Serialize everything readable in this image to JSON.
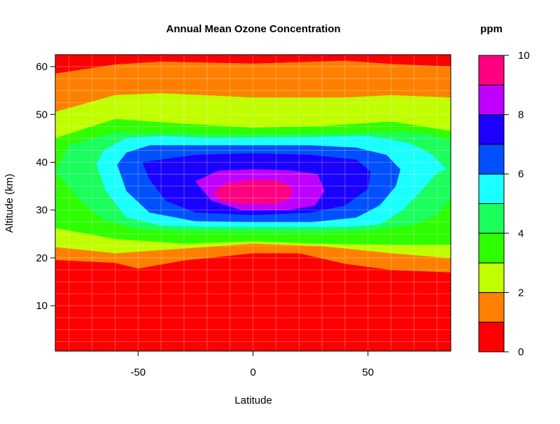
{
  "chart_data": {
    "type": "heatmap",
    "subtype": "filled-contour",
    "title": "Annual Mean Ozone Concentration",
    "xlabel": "Latitude",
    "ylabel": "Altitude (km)",
    "colorbar_title": "ppm",
    "xlim": [
      -86,
      86
    ],
    "ylim": [
      0.5,
      62.5
    ],
    "x_ticks": [
      -50,
      0,
      50
    ],
    "y_ticks": [
      10,
      20,
      30,
      40,
      50,
      60
    ],
    "colorbar_ticks": [
      0,
      2,
      4,
      6,
      8,
      10
    ],
    "grid": true,
    "levels": [
      0,
      1,
      2,
      3,
      4,
      5,
      6,
      7,
      8,
      9,
      10
    ],
    "level_colors": [
      "#FF0000",
      "#FF8000",
      "#C0FF00",
      "#2EFF00",
      "#1AFF5C",
      "#1AFFFF",
      "#0050FF",
      "#1A00FF",
      "#BF00FF",
      "#FF0080"
    ],
    "contour_bands": [
      {
        "range": [
          1,
          2
        ],
        "outline": [
          [
            -86,
            19.6
          ],
          [
            -60,
            19
          ],
          [
            -50,
            17.8
          ],
          [
            -30,
            19.5
          ],
          [
            0,
            21
          ],
          [
            20,
            21
          ],
          [
            40,
            18.8
          ],
          [
            60,
            17.5
          ],
          [
            86,
            17
          ],
          [
            86,
            60
          ],
          [
            60,
            60.5
          ],
          [
            40,
            61.2
          ],
          [
            0,
            60.6
          ],
          [
            -40,
            61
          ],
          [
            -60,
            60.4
          ],
          [
            -86,
            58.5
          ]
        ]
      },
      {
        "range": [
          2,
          3
        ],
        "outline": [
          [
            -86,
            22.3
          ],
          [
            -60,
            21
          ],
          [
            -30,
            22
          ],
          [
            0,
            23
          ],
          [
            30,
            22.5
          ],
          [
            60,
            21
          ],
          [
            86,
            20
          ],
          [
            86,
            53.5
          ],
          [
            60,
            54
          ],
          [
            40,
            53.5
          ],
          [
            0,
            53.5
          ],
          [
            -40,
            54.4
          ],
          [
            -60,
            54
          ],
          [
            -86,
            50.5
          ]
        ]
      },
      {
        "range": [
          3,
          4
        ],
        "outline": [
          [
            -86,
            26.3
          ],
          [
            -60,
            24
          ],
          [
            -30,
            23
          ],
          [
            0,
            23.5
          ],
          [
            30,
            23
          ],
          [
            60,
            22.8
          ],
          [
            86,
            22.8
          ],
          [
            86,
            46.5
          ],
          [
            60,
            48.5
          ],
          [
            30,
            47.5
          ],
          [
            0,
            47.2
          ],
          [
            -30,
            48
          ],
          [
            -60,
            49
          ],
          [
            -86,
            45
          ]
        ]
      },
      {
        "range": [
          4,
          5
        ],
        "outline": [
          [
            -86,
            38
          ],
          [
            -82,
            36
          ],
          [
            -75,
            32
          ],
          [
            -65,
            28
          ],
          [
            -50,
            26
          ],
          [
            -25,
            25.5
          ],
          [
            0,
            25.5
          ],
          [
            25,
            25.3
          ],
          [
            50,
            25.8
          ],
          [
            70,
            27
          ],
          [
            80,
            29
          ],
          [
            86,
            32.5
          ],
          [
            86,
            44.5
          ],
          [
            75,
            46
          ],
          [
            60,
            46.3
          ],
          [
            30,
            46
          ],
          [
            0,
            45.8
          ],
          [
            -30,
            46
          ],
          [
            -60,
            46.2
          ],
          [
            -80,
            43.5
          ]
        ]
      },
      {
        "range": [
          5,
          6
        ],
        "outline": [
          [
            -68,
            39.5
          ],
          [
            -64,
            34
          ],
          [
            -55,
            28.5
          ],
          [
            -40,
            26.8
          ],
          [
            -15,
            26.5
          ],
          [
            15,
            26.5
          ],
          [
            40,
            26.5
          ],
          [
            55,
            27
          ],
          [
            65,
            30
          ],
          [
            72,
            33.5
          ],
          [
            80,
            37.8
          ],
          [
            84,
            38.5
          ],
          [
            78,
            41.5
          ],
          [
            68,
            44
          ],
          [
            50,
            45.5
          ],
          [
            20,
            45.2
          ],
          [
            -20,
            45
          ],
          [
            -40,
            45.5
          ],
          [
            -55,
            45
          ],
          [
            -65,
            42.5
          ]
        ]
      },
      {
        "range": [
          6,
          7
        ],
        "outline": [
          [
            -59,
            39.5
          ],
          [
            -55,
            34
          ],
          [
            -45,
            29.5
          ],
          [
            -25,
            27.7
          ],
          [
            0,
            27.5
          ],
          [
            25,
            27.5
          ],
          [
            45,
            28.5
          ],
          [
            55,
            31
          ],
          [
            62,
            35
          ],
          [
            64,
            38.5
          ],
          [
            58,
            41.5
          ],
          [
            45,
            43
          ],
          [
            25,
            43.5
          ],
          [
            0,
            43.5
          ],
          [
            -25,
            43.5
          ],
          [
            -45,
            43.5
          ],
          [
            -55,
            42
          ]
        ]
      },
      {
        "range": [
          7,
          8
        ],
        "outline": [
          [
            -48,
            40
          ],
          [
            -45,
            36.5
          ],
          [
            -38,
            32
          ],
          [
            -25,
            29.5
          ],
          [
            0,
            29
          ],
          [
            25,
            29.5
          ],
          [
            40,
            31
          ],
          [
            50,
            34.5
          ],
          [
            51,
            38
          ],
          [
            45,
            40.5
          ],
          [
            25,
            41.5
          ],
          [
            0,
            41.8
          ],
          [
            -25,
            41.5
          ]
        ]
      },
      {
        "range": [
          8,
          9
        ],
        "outline": [
          [
            -25,
            36
          ],
          [
            -18,
            32
          ],
          [
            -5,
            30
          ],
          [
            15,
            30
          ],
          [
            27,
            31
          ],
          [
            31,
            34
          ],
          [
            28,
            37.5
          ],
          [
            15,
            38.3
          ],
          [
            0,
            38.5
          ],
          [
            -15,
            38.2
          ]
        ]
      },
      {
        "range": [
          9,
          10
        ],
        "outline": [
          [
            -17,
            33.8
          ],
          [
            -14,
            32
          ],
          [
            -5,
            31.3
          ],
          [
            10,
            31.3
          ],
          [
            16,
            32.5
          ],
          [
            17,
            34.5
          ],
          [
            12,
            36
          ],
          [
            0,
            36.3
          ],
          [
            -12,
            35.5
          ]
        ]
      }
    ]
  }
}
